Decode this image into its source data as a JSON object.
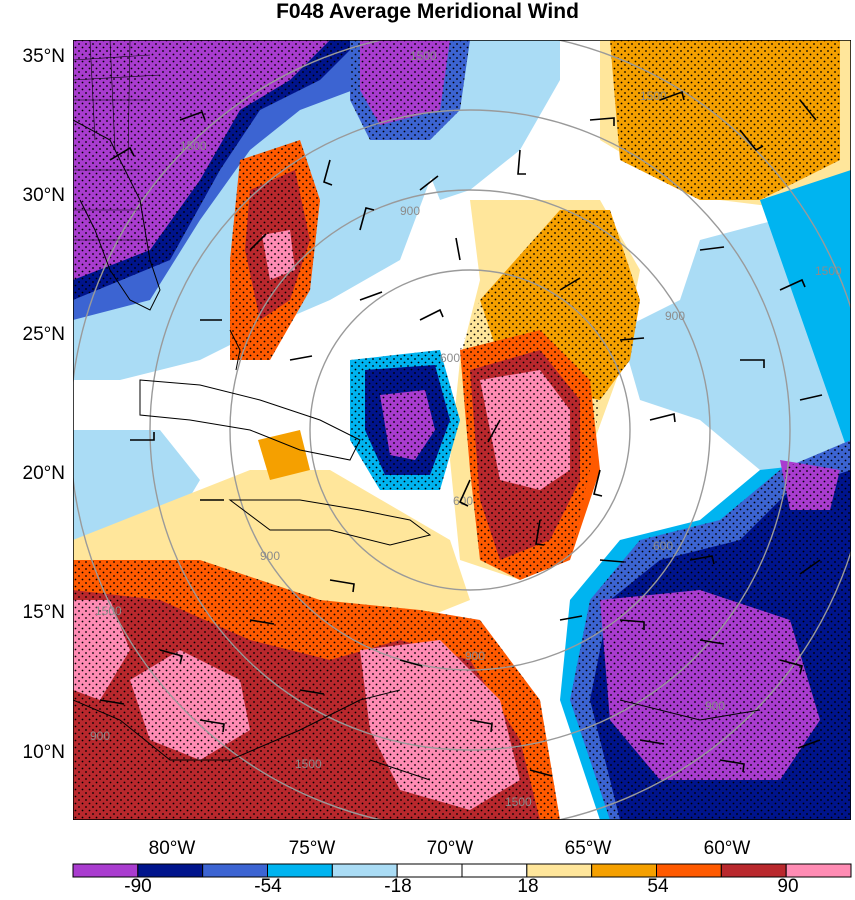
{
  "title": "F048 Average Meridional Wind",
  "latitude_labels": [
    "35°N",
    "30°N",
    "25°N",
    "20°N",
    "15°N",
    "10°N"
  ],
  "longitude_labels": [
    "80°W",
    "75°W",
    "70°W",
    "65°W",
    "60°W"
  ],
  "height_contour_labels": [
    "1500",
    "1500",
    "1500",
    "900",
    "900",
    "900",
    "900",
    "600",
    "600",
    "600",
    "1500",
    "1500",
    "900",
    "1500",
    "1500",
    "900"
  ],
  "colorbar": {
    "colors": [
      "#a93ccf",
      "#00148c",
      "#3c64d2",
      "#00b4f0",
      "#aadcf5",
      "#ffffff",
      "#ffffff",
      "#ffe69b",
      "#f5a000",
      "#ff5a00",
      "#b9282d",
      "#ff8cb4"
    ],
    "tick_labels": [
      "-90",
      "-54",
      "-18",
      "18",
      "54",
      "90"
    ]
  }
}
